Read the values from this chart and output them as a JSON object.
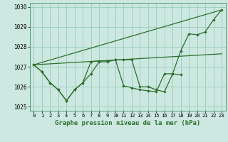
{
  "title": "Graphe pression niveau de la mer (hPa)",
  "bg_color": "#cce8e0",
  "grid_color": "#99ccbb",
  "line_color": "#2d6e2d",
  "xlim": [
    -0.5,
    23.5
  ],
  "ylim": [
    1024.8,
    1030.2
  ],
  "yticks": [
    1025,
    1026,
    1027,
    1028,
    1029,
    1030
  ],
  "xticks": [
    0,
    1,
    2,
    3,
    4,
    5,
    6,
    7,
    8,
    9,
    10,
    11,
    12,
    13,
    14,
    15,
    16,
    17,
    18,
    19,
    20,
    21,
    22,
    23
  ],
  "series_jagged1": {
    "x": [
      0,
      1,
      2,
      3,
      4,
      5,
      6,
      7,
      8,
      9,
      10,
      11,
      12,
      13,
      14,
      15,
      16,
      17,
      18
    ],
    "y": [
      1027.1,
      1026.75,
      1026.2,
      1025.85,
      1025.3,
      1025.85,
      1026.2,
      1026.65,
      1027.25,
      1027.25,
      1027.35,
      1026.05,
      1025.95,
      1025.85,
      1025.8,
      1025.75,
      1026.65,
      1026.65,
      1026.6
    ]
  },
  "series_jagged2": {
    "x": [
      0,
      1,
      2,
      3,
      4,
      5,
      6,
      7,
      8,
      9,
      10,
      11,
      12,
      13,
      14,
      15,
      16,
      17,
      18,
      19,
      20,
      21,
      22,
      23
    ],
    "y": [
      1027.1,
      1026.75,
      1026.2,
      1025.85,
      1025.3,
      1025.85,
      1026.2,
      1027.25,
      1027.3,
      1027.3,
      1027.35,
      1027.35,
      1027.35,
      1026.0,
      1026.0,
      1025.85,
      1025.75,
      1026.65,
      1027.8,
      1028.65,
      1028.6,
      1028.75,
      1029.35,
      1029.85
    ]
  },
  "trend_line1": {
    "x": [
      0,
      23
    ],
    "y": [
      1027.1,
      1029.85
    ]
  },
  "trend_line2": {
    "x": [
      0,
      23
    ],
    "y": [
      1027.1,
      1027.65
    ]
  }
}
